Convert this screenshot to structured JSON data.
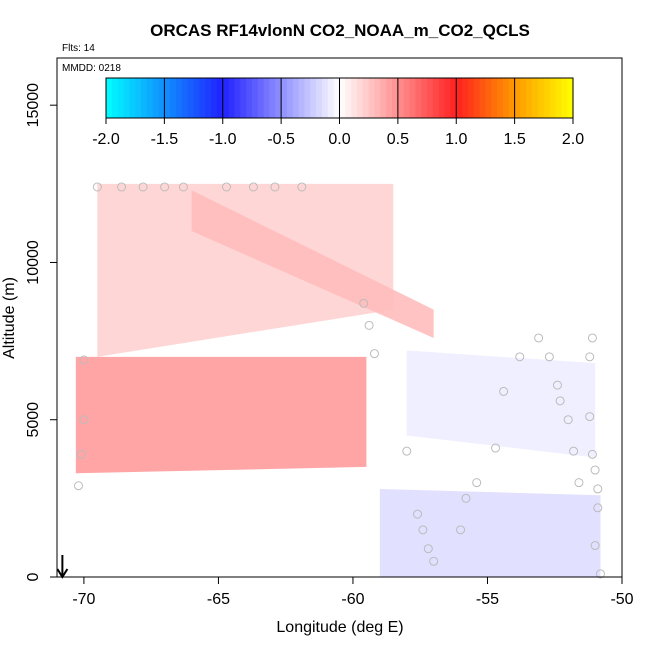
{
  "chart_data": {
    "type": "heatmap",
    "title": "ORCAS RF14vlonN CO2_NOAA_m_CO2_QCLS",
    "subtitle_flts": "Flts: 14",
    "subtitle_mmdd": "MMDD: 0218",
    "xlabel": "Longitude (deg E)",
    "ylabel": "Altitude (m)",
    "xlim": [
      -71,
      -50
    ],
    "ylim": [
      0,
      16500
    ],
    "x_ticks": [
      -70,
      -65,
      -60,
      -55,
      -50
    ],
    "x_tick_labels": [
      "-70",
      "-65",
      "-60",
      "-55",
      "-50"
    ],
    "y_ticks": [
      0,
      5000,
      10000,
      15000
    ],
    "y_tick_labels": [
      "0",
      "5000",
      "10000",
      "15000"
    ],
    "colorbar": {
      "range": [
        -2.0,
        2.0
      ],
      "ticks": [
        -2.0,
        -1.5,
        -1.0,
        -0.5,
        0.0,
        0.5,
        1.0,
        1.5,
        2.0
      ],
      "tick_labels": [
        "-2.0",
        "-1.5",
        "-1.0",
        "-0.5",
        "0.0",
        "0.5",
        "1.0",
        "1.5",
        "2.0"
      ],
      "stops": [
        {
          "v": -2.0,
          "color": "#00ffff"
        },
        {
          "v": -1.0,
          "color": "#2020ff"
        },
        {
          "v": 0.0,
          "color": "#ffffff"
        },
        {
          "v": 1.0,
          "color": "#ff2020"
        },
        {
          "v": 1.5,
          "color": "#ff9900"
        },
        {
          "v": 2.0,
          "color": "#ffff00"
        }
      ]
    },
    "field_regions": [
      {
        "name": "upper-band",
        "lon": [
          -69.5,
          -58.5
        ],
        "alt_top": [
          12500,
          12500
        ],
        "alt_bottom": [
          7000,
          8500
        ],
        "value": 0.2
      },
      {
        "name": "upper-diagonal-streak",
        "lon": [
          -66,
          -57
        ],
        "alt_top": [
          12300,
          8500
        ],
        "alt_bottom": [
          11000,
          7600
        ],
        "value": 0.3
      },
      {
        "name": "mid-band",
        "lon": [
          -70.3,
          -59.5
        ],
        "alt_top": [
          7000,
          7000
        ],
        "alt_bottom": [
          3300,
          3500
        ],
        "value": 0.45
      },
      {
        "name": "low-negative",
        "lon": [
          -59,
          -50.8
        ],
        "alt_top": [
          2800,
          2600
        ],
        "alt_bottom": [
          0,
          0
        ],
        "value": -0.15
      },
      {
        "name": "mid-negative",
        "lon": [
          -58,
          -51
        ],
        "alt_top": [
          7200,
          6800
        ],
        "alt_bottom": [
          4500,
          3800
        ],
        "value": -0.08
      }
    ],
    "samples": [
      {
        "lon": -69.5,
        "alt": 12400
      },
      {
        "lon": -68.6,
        "alt": 12400
      },
      {
        "lon": -67.8,
        "alt": 12400
      },
      {
        "lon": -67.0,
        "alt": 12400
      },
      {
        "lon": -66.3,
        "alt": 12400
      },
      {
        "lon": -64.7,
        "alt": 12400
      },
      {
        "lon": -63.7,
        "alt": 12400
      },
      {
        "lon": -62.9,
        "alt": 12400
      },
      {
        "lon": -61.9,
        "alt": 12400
      },
      {
        "lon": -70.2,
        "alt": 2900
      },
      {
        "lon": -70.1,
        "alt": 3900
      },
      {
        "lon": -70.0,
        "alt": 5000
      },
      {
        "lon": -70.0,
        "alt": 6900
      },
      {
        "lon": -59.6,
        "alt": 8700
      },
      {
        "lon": -59.4,
        "alt": 8000
      },
      {
        "lon": -59.2,
        "alt": 7100
      },
      {
        "lon": -58.0,
        "alt": 4000
      },
      {
        "lon": -57.6,
        "alt": 2000
      },
      {
        "lon": -57.4,
        "alt": 1500
      },
      {
        "lon": -57.2,
        "alt": 900
      },
      {
        "lon": -57.0,
        "alt": 500
      },
      {
        "lon": -56.0,
        "alt": 1500
      },
      {
        "lon": -55.8,
        "alt": 2500
      },
      {
        "lon": -55.4,
        "alt": 3000
      },
      {
        "lon": -54.7,
        "alt": 4100
      },
      {
        "lon": -54.4,
        "alt": 5900
      },
      {
        "lon": -53.8,
        "alt": 7000
      },
      {
        "lon": -53.1,
        "alt": 7600
      },
      {
        "lon": -52.7,
        "alt": 7000
      },
      {
        "lon": -52.4,
        "alt": 6100
      },
      {
        "lon": -52.3,
        "alt": 5600
      },
      {
        "lon": -52.0,
        "alt": 5000
      },
      {
        "lon": -51.8,
        "alt": 4000
      },
      {
        "lon": -51.6,
        "alt": 3000
      },
      {
        "lon": -51.1,
        "alt": 7600
      },
      {
        "lon": -51.2,
        "alt": 7000
      },
      {
        "lon": -51.2,
        "alt": 5100
      },
      {
        "lon": -51.1,
        "alt": 3900
      },
      {
        "lon": -51.0,
        "alt": 3400
      },
      {
        "lon": -50.9,
        "alt": 2800
      },
      {
        "lon": -50.9,
        "alt": 2200
      },
      {
        "lon": -51.0,
        "alt": 1000
      },
      {
        "lon": -50.8,
        "alt": 100
      }
    ],
    "arrow_marker": {
      "lon": -70.8,
      "alt_from": 700,
      "alt_to": 0
    }
  }
}
